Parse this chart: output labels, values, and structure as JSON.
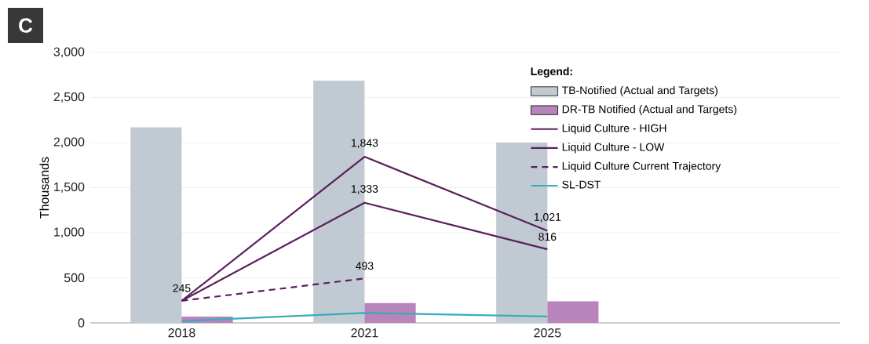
{
  "chart_data": {
    "type": "bar",
    "title": "C",
    "ylabel": "Thousands",
    "legend_title": "Legend:",
    "categories": [
      "2018",
      "2021",
      "2025"
    ],
    "series": [
      {
        "name": "TB-Notified (Actual and Targets)",
        "color": "#c1cad2",
        "values": [
          2170,
          2690,
          2000
        ]
      },
      {
        "name": "DR-TB Notified (Actual and Targets)",
        "color": "#b784bb",
        "values": [
          70,
          220,
          240
        ]
      },
      {
        "name": "Liquid Culture - HIGH",
        "type": "line",
        "color": "#5a1f5c",
        "line_style": "solid",
        "values": [
          245,
          1843,
          1021
        ],
        "value_labels": [
          "245",
          "1,843",
          "1,021"
        ]
      },
      {
        "name": "Liquid Culture - LOW",
        "type": "line",
        "color": "#5a1f5c",
        "line_style": "solid",
        "values": [
          245,
          1333,
          816
        ],
        "value_labels": [
          null,
          "1,333",
          "816"
        ]
      },
      {
        "name": "Liquid Culture Current Trajectory",
        "type": "line",
        "color": "#5a1f5c",
        "line_style": "dashed",
        "values": [
          245,
          493,
          null
        ],
        "value_labels": [
          null,
          "493",
          null
        ]
      },
      {
        "name": "SL-DST",
        "type": "line",
        "color": "#3aacb8",
        "line_style": "solid",
        "values": [
          20,
          110,
          70
        ]
      }
    ],
    "ylim": [
      0,
      3000
    ],
    "yticks": [
      0,
      {
        "value": 500,
        "label": "500"
      },
      {
        "value": 1000,
        "label": "1,000"
      },
      {
        "value": 1500,
        "label": "1,500"
      },
      {
        "value": 2000,
        "label": "2,000"
      },
      {
        "value": 2500,
        "label": "2,500"
      },
      {
        "value": 3000,
        "label": "3,000"
      }
    ],
    "grid": "y",
    "legend": "top right"
  }
}
